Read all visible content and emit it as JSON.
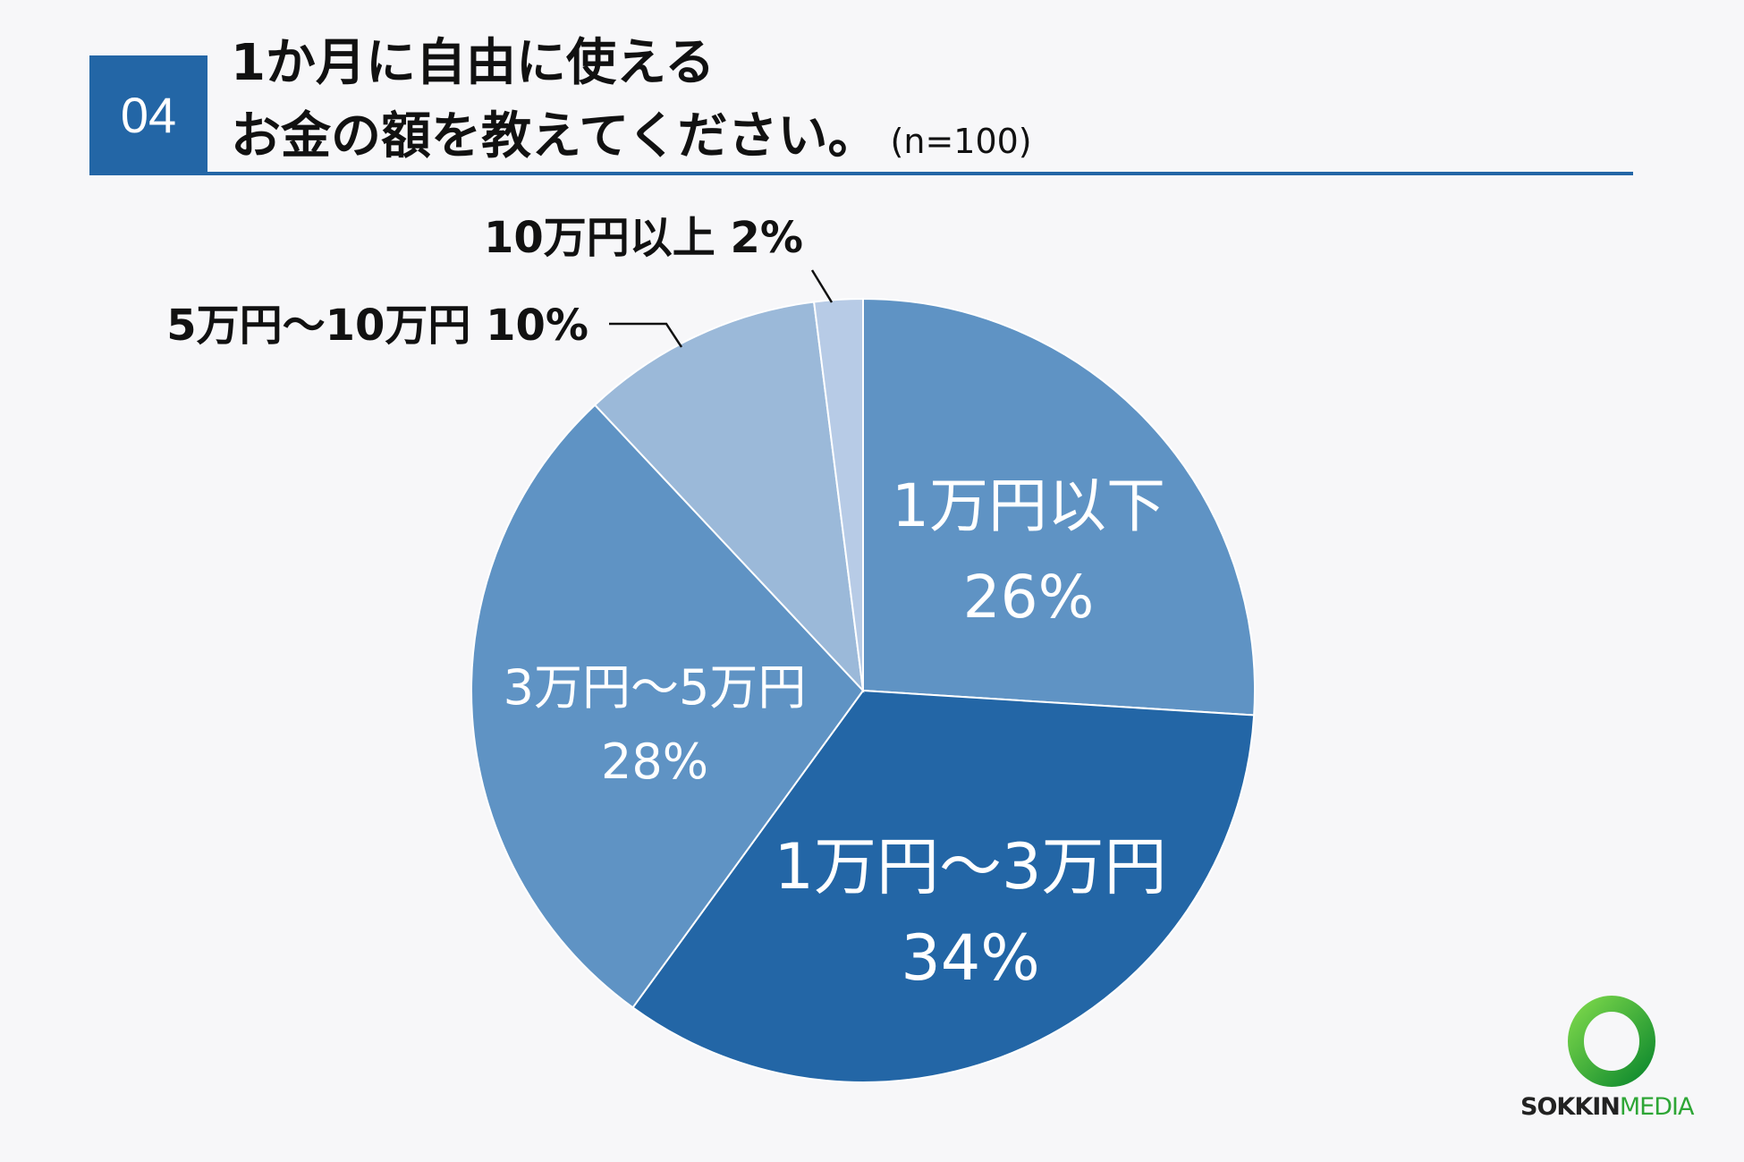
{
  "header": {
    "question_number": "04",
    "title_line1": "1か月に自由に使える",
    "title_line2": "お金の額を教えてください。",
    "sample_size": "(n=100)"
  },
  "chart_data": {
    "type": "pie",
    "title": "1か月に自由に使えるお金の額を教えてください。",
    "slices": [
      {
        "label": "1万円以下",
        "value": 26,
        "display": "26%",
        "color": "#5f93c4"
      },
      {
        "label": "1万円〜3万円",
        "value": 34,
        "display": "34%",
        "color": "#2366a6"
      },
      {
        "label": "3万円〜5万円",
        "value": 28,
        "display": "28%",
        "color": "#5f93c4"
      },
      {
        "label": "5万円〜10万円",
        "value": 10,
        "display": "10%",
        "color": "#9bb9d9"
      },
      {
        "label": "10万円以上",
        "value": 2,
        "display": "2%",
        "color": "#b7cbe6"
      }
    ],
    "start": "12 o'clock",
    "direction": "clockwise"
  },
  "brand": {
    "name_part1": "SOKKIN",
    "name_part2": "MEDIA"
  }
}
